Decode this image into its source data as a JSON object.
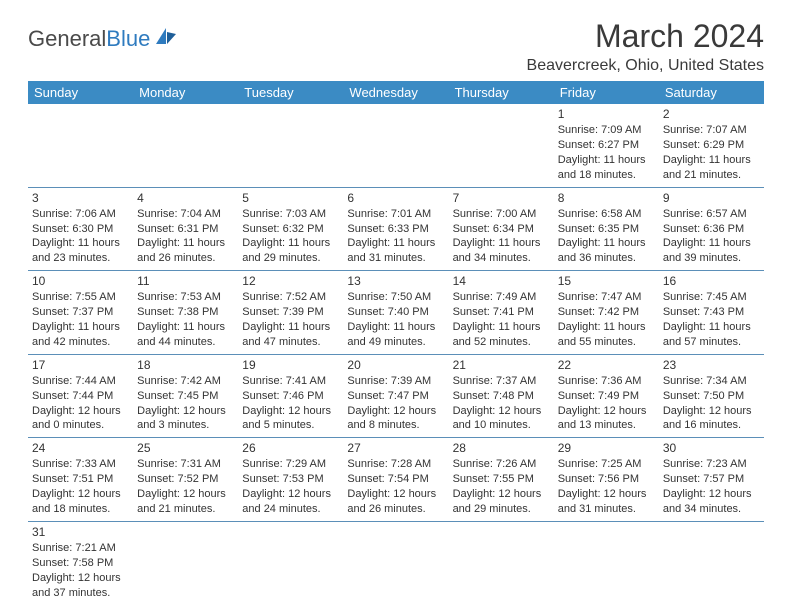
{
  "logo": {
    "textA": "General",
    "textB": "Blue"
  },
  "title": "March 2024",
  "location": "Beavercreek, Ohio, United States",
  "colors": {
    "header_bg": "#3b8bc4",
    "header_text": "#ffffff",
    "cell_border": "#5b8fb8",
    "logo_blue": "#2f7bbf",
    "body_text": "#333333",
    "page_bg": "#ffffff"
  },
  "weekdays": [
    "Sunday",
    "Monday",
    "Tuesday",
    "Wednesday",
    "Thursday",
    "Friday",
    "Saturday"
  ],
  "weeks": [
    [
      null,
      null,
      null,
      null,
      null,
      {
        "day": "1",
        "sunrise": "Sunrise: 7:09 AM",
        "sunset": "Sunset: 6:27 PM",
        "daylight": "Daylight: 11 hours and 18 minutes."
      },
      {
        "day": "2",
        "sunrise": "Sunrise: 7:07 AM",
        "sunset": "Sunset: 6:29 PM",
        "daylight": "Daylight: 11 hours and 21 minutes."
      }
    ],
    [
      {
        "day": "3",
        "sunrise": "Sunrise: 7:06 AM",
        "sunset": "Sunset: 6:30 PM",
        "daylight": "Daylight: 11 hours and 23 minutes."
      },
      {
        "day": "4",
        "sunrise": "Sunrise: 7:04 AM",
        "sunset": "Sunset: 6:31 PM",
        "daylight": "Daylight: 11 hours and 26 minutes."
      },
      {
        "day": "5",
        "sunrise": "Sunrise: 7:03 AM",
        "sunset": "Sunset: 6:32 PM",
        "daylight": "Daylight: 11 hours and 29 minutes."
      },
      {
        "day": "6",
        "sunrise": "Sunrise: 7:01 AM",
        "sunset": "Sunset: 6:33 PM",
        "daylight": "Daylight: 11 hours and 31 minutes."
      },
      {
        "day": "7",
        "sunrise": "Sunrise: 7:00 AM",
        "sunset": "Sunset: 6:34 PM",
        "daylight": "Daylight: 11 hours and 34 minutes."
      },
      {
        "day": "8",
        "sunrise": "Sunrise: 6:58 AM",
        "sunset": "Sunset: 6:35 PM",
        "daylight": "Daylight: 11 hours and 36 minutes."
      },
      {
        "day": "9",
        "sunrise": "Sunrise: 6:57 AM",
        "sunset": "Sunset: 6:36 PM",
        "daylight": "Daylight: 11 hours and 39 minutes."
      }
    ],
    [
      {
        "day": "10",
        "sunrise": "Sunrise: 7:55 AM",
        "sunset": "Sunset: 7:37 PM",
        "daylight": "Daylight: 11 hours and 42 minutes."
      },
      {
        "day": "11",
        "sunrise": "Sunrise: 7:53 AM",
        "sunset": "Sunset: 7:38 PM",
        "daylight": "Daylight: 11 hours and 44 minutes."
      },
      {
        "day": "12",
        "sunrise": "Sunrise: 7:52 AM",
        "sunset": "Sunset: 7:39 PM",
        "daylight": "Daylight: 11 hours and 47 minutes."
      },
      {
        "day": "13",
        "sunrise": "Sunrise: 7:50 AM",
        "sunset": "Sunset: 7:40 PM",
        "daylight": "Daylight: 11 hours and 49 minutes."
      },
      {
        "day": "14",
        "sunrise": "Sunrise: 7:49 AM",
        "sunset": "Sunset: 7:41 PM",
        "daylight": "Daylight: 11 hours and 52 minutes."
      },
      {
        "day": "15",
        "sunrise": "Sunrise: 7:47 AM",
        "sunset": "Sunset: 7:42 PM",
        "daylight": "Daylight: 11 hours and 55 minutes."
      },
      {
        "day": "16",
        "sunrise": "Sunrise: 7:45 AM",
        "sunset": "Sunset: 7:43 PM",
        "daylight": "Daylight: 11 hours and 57 minutes."
      }
    ],
    [
      {
        "day": "17",
        "sunrise": "Sunrise: 7:44 AM",
        "sunset": "Sunset: 7:44 PM",
        "daylight": "Daylight: 12 hours and 0 minutes."
      },
      {
        "day": "18",
        "sunrise": "Sunrise: 7:42 AM",
        "sunset": "Sunset: 7:45 PM",
        "daylight": "Daylight: 12 hours and 3 minutes."
      },
      {
        "day": "19",
        "sunrise": "Sunrise: 7:41 AM",
        "sunset": "Sunset: 7:46 PM",
        "daylight": "Daylight: 12 hours and 5 minutes."
      },
      {
        "day": "20",
        "sunrise": "Sunrise: 7:39 AM",
        "sunset": "Sunset: 7:47 PM",
        "daylight": "Daylight: 12 hours and 8 minutes."
      },
      {
        "day": "21",
        "sunrise": "Sunrise: 7:37 AM",
        "sunset": "Sunset: 7:48 PM",
        "daylight": "Daylight: 12 hours and 10 minutes."
      },
      {
        "day": "22",
        "sunrise": "Sunrise: 7:36 AM",
        "sunset": "Sunset: 7:49 PM",
        "daylight": "Daylight: 12 hours and 13 minutes."
      },
      {
        "day": "23",
        "sunrise": "Sunrise: 7:34 AM",
        "sunset": "Sunset: 7:50 PM",
        "daylight": "Daylight: 12 hours and 16 minutes."
      }
    ],
    [
      {
        "day": "24",
        "sunrise": "Sunrise: 7:33 AM",
        "sunset": "Sunset: 7:51 PM",
        "daylight": "Daylight: 12 hours and 18 minutes."
      },
      {
        "day": "25",
        "sunrise": "Sunrise: 7:31 AM",
        "sunset": "Sunset: 7:52 PM",
        "daylight": "Daylight: 12 hours and 21 minutes."
      },
      {
        "day": "26",
        "sunrise": "Sunrise: 7:29 AM",
        "sunset": "Sunset: 7:53 PM",
        "daylight": "Daylight: 12 hours and 24 minutes."
      },
      {
        "day": "27",
        "sunrise": "Sunrise: 7:28 AM",
        "sunset": "Sunset: 7:54 PM",
        "daylight": "Daylight: 12 hours and 26 minutes."
      },
      {
        "day": "28",
        "sunrise": "Sunrise: 7:26 AM",
        "sunset": "Sunset: 7:55 PM",
        "daylight": "Daylight: 12 hours and 29 minutes."
      },
      {
        "day": "29",
        "sunrise": "Sunrise: 7:25 AM",
        "sunset": "Sunset: 7:56 PM",
        "daylight": "Daylight: 12 hours and 31 minutes."
      },
      {
        "day": "30",
        "sunrise": "Sunrise: 7:23 AM",
        "sunset": "Sunset: 7:57 PM",
        "daylight": "Daylight: 12 hours and 34 minutes."
      }
    ],
    [
      {
        "day": "31",
        "sunrise": "Sunrise: 7:21 AM",
        "sunset": "Sunset: 7:58 PM",
        "daylight": "Daylight: 12 hours and 37 minutes."
      },
      null,
      null,
      null,
      null,
      null,
      null
    ]
  ]
}
